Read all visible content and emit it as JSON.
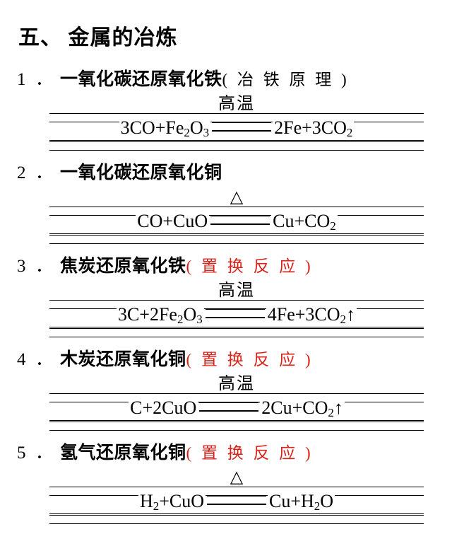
{
  "colors": {
    "text": "#000000",
    "accent": "#d9231a",
    "bg": "#ffffff"
  },
  "title": "五、 金属的冶炼",
  "items": [
    {
      "num": "1",
      "dot": "．",
      "title": "一氧化碳还原氧化铁",
      "paren": "( 冶 铁 原 理 )",
      "paren_color": "black",
      "condition": "高温",
      "condition_type": "text",
      "lhs": "3CO+Fe<sub>2</sub>O<sub>3</sub>",
      "rhs": "2Fe+3CO<sub>2</sub>"
    },
    {
      "num": "2",
      "dot": "．",
      "title": "一氧化碳还原氧化铜",
      "paren": "",
      "paren_color": "black",
      "condition": "△",
      "condition_type": "triangle",
      "lhs": "CO+CuO",
      "rhs": "Cu+CO<sub>2</sub>"
    },
    {
      "num": "3",
      "dot": "．",
      "title": "焦炭还原氧化铁",
      "paren": "( 置 换 反 应 )",
      "paren_color": "red",
      "condition": "高温",
      "condition_type": "text",
      "lhs": "3C+2Fe<sub>2</sub>O<sub>3</sub>",
      "rhs": "4Fe+3CO<sub>2</sub>↑"
    },
    {
      "num": "4",
      "dot": "．",
      "title": "木炭还原氧化铜",
      "paren": "( 置 换 反 应 )",
      "paren_color": "red",
      "condition": "高温",
      "condition_type": "text",
      "lhs": "C+2CuO",
      "rhs": "2Cu+CO<sub>2</sub>↑"
    },
    {
      "num": "5",
      "dot": "．",
      "title": "氢气还原氧化铜",
      "paren": "( 置 换 反 应 )",
      "paren_color": "red",
      "condition": "△",
      "condition_type": "triangle",
      "lhs": "H<sub>2</sub>+CuO",
      "rhs": "Cu+H<sub>2</sub>O"
    }
  ]
}
